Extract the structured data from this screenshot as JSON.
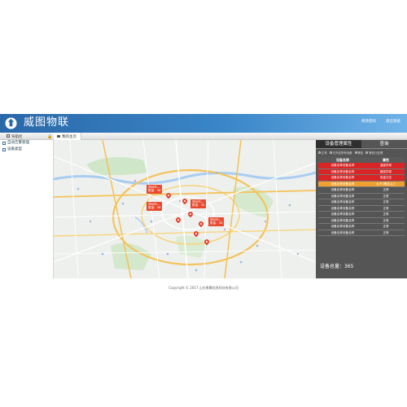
{
  "header": {
    "title": "威图物联",
    "links": [
      "修改密码",
      "退出系统"
    ]
  },
  "navbar": {
    "nav_label": "导航栏",
    "home_tab": "我的主页"
  },
  "sidebar": {
    "items": [
      {
        "label": "自动告警管理",
        "icon": "grid-icon"
      },
      {
        "label": "设备类型",
        "icon": "grid-icon"
      }
    ]
  },
  "map": {
    "clusters": [
      {
        "line1": "郑州市—",
        "line2": "数量：36"
      },
      {
        "line1": "郑州市—",
        "line2": "数量：36"
      },
      {
        "line1": "郑州市—",
        "line2": "数量：35"
      },
      {
        "line1": "郑州市—",
        "line2": "数量：36"
      }
    ]
  },
  "panel": {
    "tabs": [
      "设备管理属性",
      "查询"
    ],
    "legend": [
      "正常",
      "已开启所有设备",
      "警告",
      "警告已处理"
    ],
    "columns": [
      "设备名称",
      "属性"
    ],
    "rows": [
      {
        "name": "设备名称设备名称",
        "status": "温度异常",
        "state": "alarm"
      },
      {
        "name": "设备名称设备名称",
        "status": "烟感异常",
        "state": "alarm"
      },
      {
        "name": "设备名称设备名称",
        "status": "电量欠压",
        "state": "alarm"
      },
      {
        "name": "设备名称设备名称",
        "status": "大于1警告以上",
        "state": "warn"
      },
      {
        "name": "设备名称设备名称",
        "status": "正常",
        "state": "normal"
      },
      {
        "name": "设备名称设备名称",
        "status": "正常",
        "state": "normal"
      },
      {
        "name": "设备名称设备名称",
        "status": "正常",
        "state": "normal"
      },
      {
        "name": "设备名称设备名称",
        "status": "正常",
        "state": "normal"
      },
      {
        "name": "设备名称设备名称",
        "status": "正常",
        "state": "normal"
      },
      {
        "name": "设备名称设备名称",
        "status": "正常",
        "state": "normal"
      },
      {
        "name": "设备名称设备名称",
        "status": "正常",
        "state": "normal"
      },
      {
        "name": "设备名称设备名称",
        "status": "正常",
        "state": "normal"
      }
    ],
    "total": "设备总量：365"
  },
  "footer": {
    "copyright": "Copyright © 2017 山东景腾信息科技有限公司"
  },
  "colors": {
    "header_start": "#2a68a8",
    "header_end": "#6fb2e8",
    "alarm": "#d92525",
    "warn": "#f0a030",
    "cluster": "#e8482e"
  }
}
